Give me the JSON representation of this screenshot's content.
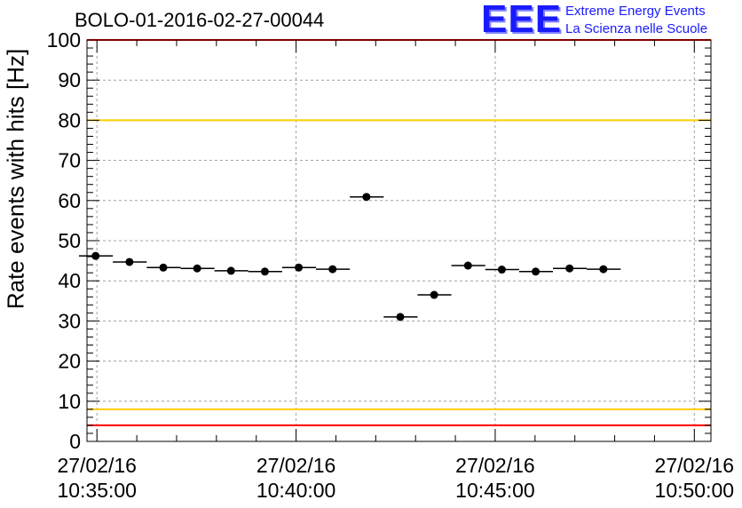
{
  "title": "BOLO-01-2016-02-27-00044",
  "logo": {
    "mark": "EEE",
    "line1": "Extreme Energy Events",
    "line2": "La Scienza nelle Scuole"
  },
  "chart_data": {
    "type": "scatter",
    "title": "BOLO-01-2016-02-27-00044",
    "ylabel": "Rate events with hits [Hz]",
    "xlabel": "",
    "x_unit": "time (27/02/2016 HH:MM:SS)",
    "xlim": [
      "10:34:45",
      "10:50:25"
    ],
    "ylim": [
      0,
      100
    ],
    "y_ticks": [
      0,
      10,
      20,
      30,
      40,
      50,
      60,
      70,
      80,
      90,
      100
    ],
    "x_ticks": [
      {
        "date": "27/02/16",
        "time": "10:35:00"
      },
      {
        "date": "27/02/16",
        "time": "10:40:00"
      },
      {
        "date": "27/02/16",
        "time": "10:45:00"
      },
      {
        "date": "27/02/16",
        "time": "10:50:00"
      }
    ],
    "grid": true,
    "points": [
      {
        "x": "10:34:58",
        "y": 46.2,
        "x_from": "10:34:33",
        "x_to": "10:35:24"
      },
      {
        "x": "10:35:49",
        "y": 44.7,
        "x_from": "10:35:24",
        "x_to": "10:36:15"
      },
      {
        "x": "10:36:40",
        "y": 43.3,
        "x_from": "10:36:15",
        "x_to": "10:37:06"
      },
      {
        "x": "10:37:31",
        "y": 43.1,
        "x_from": "10:37:06",
        "x_to": "10:37:57"
      },
      {
        "x": "10:38:22",
        "y": 42.5,
        "x_from": "10:37:57",
        "x_to": "10:38:48"
      },
      {
        "x": "10:39:13",
        "y": 42.3,
        "x_from": "10:38:48",
        "x_to": "10:39:39"
      },
      {
        "x": "10:40:04",
        "y": 43.3,
        "x_from": "10:39:39",
        "x_to": "10:40:30"
      },
      {
        "x": "10:40:55",
        "y": 42.9,
        "x_from": "10:40:30",
        "x_to": "10:41:21"
      },
      {
        "x": "10:41:46",
        "y": 60.9,
        "x_from": "10:41:21",
        "x_to": "10:42:12"
      },
      {
        "x": "10:42:37",
        "y": 31.0,
        "x_from": "10:42:12",
        "x_to": "10:43:03"
      },
      {
        "x": "10:43:28",
        "y": 36.5,
        "x_from": "10:43:03",
        "x_to": "10:43:54"
      },
      {
        "x": "10:44:19",
        "y": 43.8,
        "x_from": "10:43:54",
        "x_to": "10:44:45"
      },
      {
        "x": "10:45:10",
        "y": 42.8,
        "x_from": "10:44:45",
        "x_to": "10:45:36"
      },
      {
        "x": "10:46:01",
        "y": 42.3,
        "x_from": "10:45:36",
        "x_to": "10:46:27"
      },
      {
        "x": "10:46:52",
        "y": 43.1,
        "x_from": "10:46:27",
        "x_to": "10:47:18"
      },
      {
        "x": "10:47:43",
        "y": 42.9,
        "x_from": "10:47:18",
        "x_to": "10:48:09"
      }
    ],
    "reference_lines": [
      {
        "y": 100,
        "color": "#ff0000"
      },
      {
        "y": 80,
        "color": "#ffcc00"
      },
      {
        "y": 8,
        "color": "#ffcc00"
      },
      {
        "y": 4,
        "color": "#ff0000"
      }
    ]
  }
}
